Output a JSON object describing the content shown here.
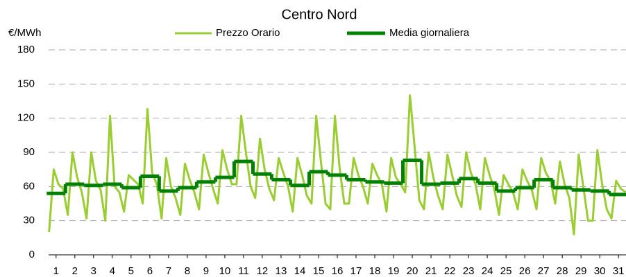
{
  "chart_data": {
    "type": "line",
    "title": "Centro Nord",
    "y_label": "€/MWh",
    "xlim": [
      0.6,
      31.4
    ],
    "xticks": [
      1,
      2,
      3,
      4,
      5,
      6,
      7,
      8,
      9,
      10,
      11,
      12,
      13,
      14,
      15,
      16,
      17,
      18,
      19,
      20,
      21,
      22,
      23,
      24,
      25,
      26,
      27,
      28,
      29,
      30,
      31
    ],
    "ylim": [
      0,
      180
    ],
    "yticks": [
      0,
      30,
      60,
      90,
      120,
      150,
      180
    ],
    "grid": true,
    "series": [
      {
        "name": "Prezzo Orario",
        "color": "#9acd32",
        "x": [
          0.625,
          0.875,
          1.125,
          1.375,
          1.625,
          1.875,
          2.125,
          2.375,
          2.625,
          2.875,
          3.125,
          3.375,
          3.625,
          3.875,
          4.125,
          4.375,
          4.625,
          4.875,
          5.125,
          5.375,
          5.625,
          5.875,
          6.125,
          6.375,
          6.625,
          6.875,
          7.125,
          7.375,
          7.625,
          7.875,
          8.125,
          8.375,
          8.625,
          8.875,
          9.125,
          9.375,
          9.625,
          9.875,
          10.125,
          10.375,
          10.625,
          10.875,
          11.125,
          11.375,
          11.625,
          11.875,
          12.125,
          12.375,
          12.625,
          12.875,
          13.125,
          13.375,
          13.625,
          13.875,
          14.125,
          14.375,
          14.625,
          14.875,
          15.125,
          15.375,
          15.625,
          15.875,
          16.125,
          16.375,
          16.625,
          16.875,
          17.125,
          17.375,
          17.625,
          17.875,
          18.125,
          18.375,
          18.625,
          18.875,
          19.125,
          19.375,
          19.625,
          19.875,
          20.125,
          20.375,
          20.625,
          20.875,
          21.125,
          21.375,
          21.625,
          21.875,
          22.125,
          22.375,
          22.625,
          22.875,
          23.125,
          23.375,
          23.625,
          23.875,
          24.125,
          24.375,
          24.625,
          24.875,
          25.125,
          25.375,
          25.625,
          25.875,
          26.125,
          26.375,
          26.625,
          26.875,
          27.125,
          27.375,
          27.625,
          27.875,
          28.125,
          28.375,
          28.625,
          28.875,
          29.125,
          29.375,
          29.625,
          29.875,
          30.125,
          30.375,
          30.625,
          30.875,
          31.125,
          31.375
        ],
        "values": [
          20,
          75,
          62,
          58,
          35,
          90,
          68,
          55,
          32,
          90,
          65,
          57,
          30,
          122,
          60,
          55,
          38,
          70,
          66,
          62,
          45,
          128,
          72,
          62,
          32,
          85,
          60,
          50,
          35,
          80,
          66,
          55,
          40,
          88,
          72,
          58,
          45,
          92,
          75,
          62,
          62,
          122,
          90,
          60,
          50,
          102,
          75,
          58,
          48,
          85,
          72,
          60,
          38,
          85,
          70,
          52,
          45,
          122,
          82,
          45,
          40,
          122,
          76,
          45,
          45,
          85,
          70,
          60,
          45,
          80,
          70,
          62,
          38,
          85,
          68,
          62,
          55,
          140,
          95,
          48,
          40,
          90,
          68,
          52,
          40,
          88,
          70,
          52,
          42,
          90,
          72,
          62,
          40,
          85,
          70,
          58,
          35,
          70,
          62,
          55,
          40,
          75,
          65,
          57,
          40,
          85,
          72,
          65,
          45,
          82,
          62,
          50,
          18,
          88,
          60,
          30,
          30,
          92,
          62,
          40,
          32,
          65,
          58,
          55
        ]
      },
      {
        "name": "Media giornaliera",
        "color": "#008000",
        "step": true,
        "x": [
          1,
          2,
          3,
          4,
          5,
          6,
          7,
          8,
          9,
          10,
          11,
          12,
          13,
          14,
          15,
          16,
          17,
          18,
          19,
          20,
          21,
          22,
          23,
          24,
          25,
          26,
          27,
          28,
          29,
          30,
          31
        ],
        "values": [
          54,
          62,
          61,
          62,
          59,
          69,
          56,
          59,
          64,
          68,
          82,
          71,
          66,
          61,
          73,
          70,
          66,
          64,
          63,
          83,
          62,
          63,
          67,
          63,
          56,
          59,
          66,
          59,
          57,
          56,
          53
        ]
      }
    ]
  }
}
